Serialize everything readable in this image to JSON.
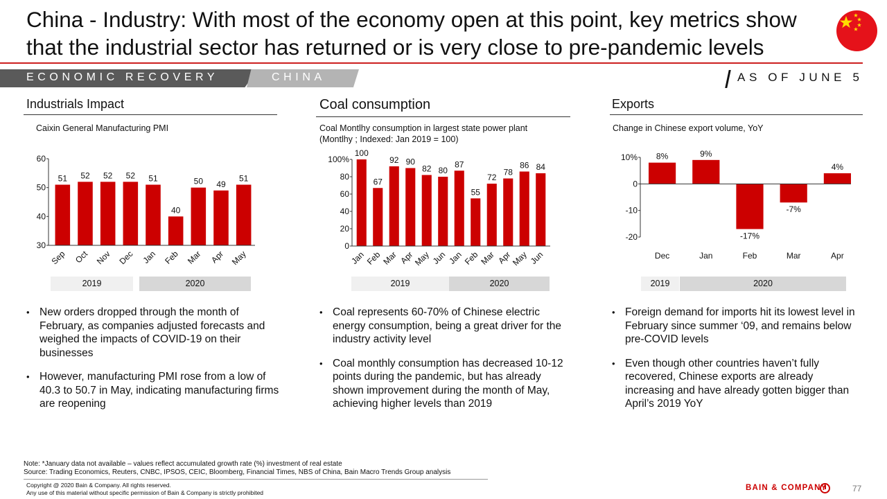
{
  "title": "China - Industry: With most of the economy open at this point, key metrics show that the industrial sector has returned or is very close to pre-pandemic levels",
  "banner": {
    "section": "ECONOMIC RECOVERY",
    "country": "CHINA",
    "as_of": "AS OF JUNE 5"
  },
  "colors": {
    "accent": "#cc0000",
    "bar": "#cc0000",
    "flag": "#e5121a",
    "star": "#ffde00"
  },
  "icons": {
    "flag": "china-flag-icon",
    "logo": "bain-logo-icon"
  },
  "panels": {
    "industrials": {
      "title": "Industrials Impact",
      "subtitle": "Caixin General Manufacturing PMI",
      "year_labels": [
        "2019",
        "2020"
      ],
      "bullets": [
        "New orders dropped through the month of February, as companies adjusted forecasts and weighed the impacts of COVID-19 on their businesses",
        "However, manufacturing PMI rose from a low of 40.3 to 50.7 in May, indicating manufacturing firms are reopening"
      ]
    },
    "coal": {
      "title": "Coal consumption",
      "subtitle_line1": "Coal Montlhy consumption in largest state power plant",
      "subtitle_line2": "(Montlhy ; Indexed: Jan 2019 = 100)",
      "year_labels": [
        "2019",
        "2020"
      ],
      "bullets": [
        "Coal represents 60-70% of Chinese electric energy consumption, being a great driver for the industry activity level",
        "Coal monthly consumption has decreased 10-12 points during the pandemic, but has already shown improvement during the month of May, achieving higher levels than 2019"
      ]
    },
    "exports": {
      "title": "Exports",
      "subtitle": "Change in Chinese export volume, YoY",
      "year_labels": [
        "2019",
        "2020"
      ],
      "bullets": [
        "Foreign demand for imports hit its lowest level in February since summer ‘09, and remains below pre-COVID levels",
        "Even though other countries haven’t fully recovered, Chinese exports are already increasing and have already gotten bigger than April’s 2019 YoY"
      ]
    }
  },
  "chart_data": [
    {
      "type": "bar",
      "categories": [
        "Sep",
        "Oct",
        "Nov",
        "Dec",
        "Jan",
        "Feb",
        "Mar",
        "Apr",
        "May"
      ],
      "values": [
        51,
        52,
        52,
        52,
        51,
        40,
        50,
        49,
        51
      ],
      "data_labels": [
        "51",
        "52",
        "52",
        "52",
        "51",
        "40",
        "50",
        "49",
        "51"
      ],
      "yticks": [
        "30",
        "40",
        "50",
        "60"
      ],
      "ylim": [
        30,
        60
      ]
    },
    {
      "type": "bar",
      "categories": [
        "Jan",
        "Feb",
        "Mar",
        "Apr",
        "May",
        "Jun",
        "Jan",
        "Feb",
        "Mar",
        "Apr",
        "May",
        "Jun"
      ],
      "values": [
        100,
        67,
        92,
        90,
        82,
        80,
        87,
        55,
        72,
        78,
        86,
        84
      ],
      "data_labels": [
        "100",
        "67",
        "92",
        "90",
        "82",
        "80",
        "87",
        "55",
        "72",
        "78",
        "86",
        "84"
      ],
      "yticks": [
        "0",
        "20",
        "40",
        "60",
        "80",
        "100%"
      ],
      "ylim": [
        0,
        100
      ]
    },
    {
      "type": "bar",
      "categories": [
        "Dec",
        "Jan",
        "Feb",
        "Mar",
        "Apr"
      ],
      "values": [
        8,
        9,
        -17,
        -7,
        4
      ],
      "data_labels": [
        "8%",
        "9%",
        "-17%",
        "-7%",
        "4%"
      ],
      "yticks": [
        "-20",
        "-10",
        "0",
        "10%"
      ],
      "ylim": [
        -20,
        10
      ]
    }
  ],
  "footer": {
    "note": "Note: *January data not available – values reflect accumulated growth rate (%) investment of real estate",
    "source": "Source: Trading Economics, Reuters, CNBC, IPSOS, CEIC, Bloomberg, Financial Times, NBS of China, Bain Macro Trends Group analysis",
    "copyright": "Copyright  @ 2020 Bain & Company. All rights reserved.",
    "permission": "Any use of this material without specific permission of Bain & Company is strictly prohibited",
    "logo_text": "BAIN & COMPANY",
    "page_number": "77"
  }
}
